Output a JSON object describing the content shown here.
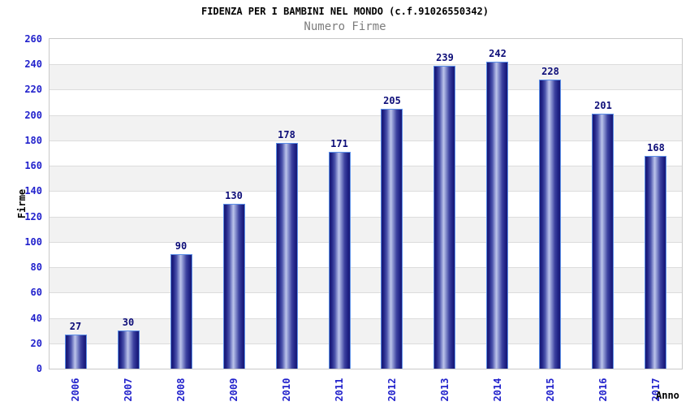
{
  "chart_data": {
    "type": "bar",
    "title": "FIDENZA PER I BAMBINI NEL MONDO (c.f.91026550342)",
    "subtitle": "Numero Firme",
    "xlabel": "Anno",
    "ylabel": "Firme",
    "categories": [
      "2006",
      "2007",
      "2008",
      "2009",
      "2010",
      "2011",
      "2012",
      "2013",
      "2014",
      "2015",
      "2016",
      "2017"
    ],
    "values": [
      27,
      30,
      90,
      130,
      178,
      171,
      205,
      239,
      242,
      228,
      201,
      168
    ],
    "ylim": [
      0,
      260
    ],
    "ytick_step": 20,
    "legend": "none",
    "grid": "horizontal-alternating-bands",
    "colors": {
      "tick_label_blue": "#2222cc",
      "value_label_navy": "#0d0d78",
      "bar_edge_navy": "#181873",
      "bar_highlight": "#bcc4ea",
      "bar_border_blue": "#5b8fe8",
      "band_gray": "#f2f2f2",
      "gridline": "#dcdcdc",
      "plot_border": "#c9c9c9",
      "title_color": "#000000",
      "subtitle_color": "#7d7d7d"
    }
  }
}
